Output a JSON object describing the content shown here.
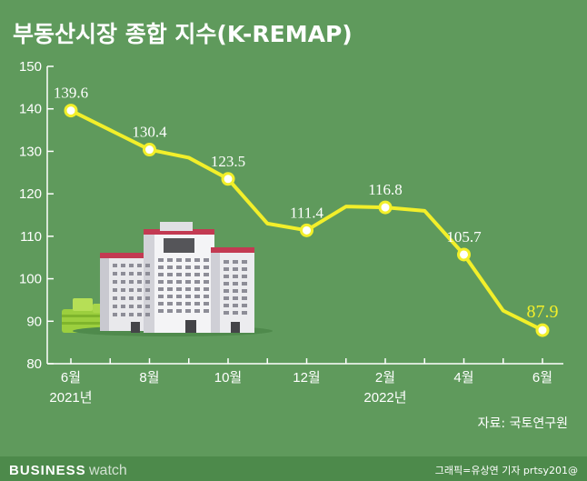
{
  "chart_data": {
    "type": "line",
    "title": "부동산시장 종합 지수(K-REMAP)",
    "xlabel": "",
    "ylabel": "",
    "ylim": [
      80,
      150
    ],
    "yticks": [
      80,
      90,
      100,
      110,
      120,
      130,
      140,
      150
    ],
    "x_tick_labels": [
      {
        "label": "6월",
        "sub": "2021년"
      },
      {
        "label": "8월",
        "sub": ""
      },
      {
        "label": "10월",
        "sub": ""
      },
      {
        "label": "12월",
        "sub": ""
      },
      {
        "label": "2월",
        "sub": "2022년"
      },
      {
        "label": "4월",
        "sub": ""
      },
      {
        "label": "6월",
        "sub": ""
      }
    ],
    "months": [
      "2021-06",
      "2021-07",
      "2021-08",
      "2021-09",
      "2021-10",
      "2021-11",
      "2021-12",
      "2022-01",
      "2022-02",
      "2022-03",
      "2022-04",
      "2022-05",
      "2022-06"
    ],
    "series": [
      {
        "name": "",
        "color": "#f2ef2a",
        "values": [
          139.6,
          135.0,
          130.4,
          128.5,
          123.5,
          113.0,
          111.4,
          117.0,
          116.8,
          116.0,
          105.7,
          92.5,
          87.9
        ],
        "labels": [
          "139.6",
          "",
          "130.4",
          "",
          "123.5",
          "",
          "111.4",
          "",
          "116.8",
          "",
          "105.7",
          "",
          "87.9"
        ]
      }
    ],
    "grid": false,
    "legend": "none"
  },
  "footer": {
    "source": "자료: 국토연구원",
    "brand_bold": "BUSINESS",
    "brand_light": "watch",
    "credit": "그래픽=유상연 기자 prtsy201@"
  },
  "colors": {
    "background": "#5f9a5c",
    "line": "#f2ef2a",
    "footer_bar": "#4d8a4b"
  }
}
